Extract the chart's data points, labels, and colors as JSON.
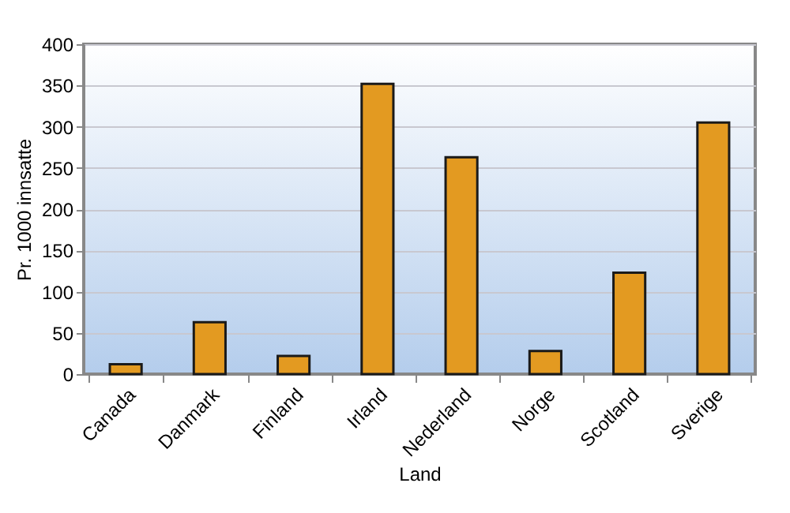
{
  "chart_data": {
    "type": "bar",
    "xlabel": "Land",
    "ylabel": "Pr. 1000 innsatte",
    "categories": [
      "Canada",
      "Danmark",
      "Finland",
      "Irland",
      "Nederland",
      "Norge",
      "Scotland",
      "Sverige"
    ],
    "values": [
      12,
      63,
      22,
      352,
      263,
      28,
      123,
      305
    ],
    "color": "#e39a21",
    "ylim": [
      0,
      400
    ],
    "yticks": [
      0,
      50,
      100,
      150,
      200,
      250,
      300,
      350,
      400
    ],
    "grid": "y"
  }
}
